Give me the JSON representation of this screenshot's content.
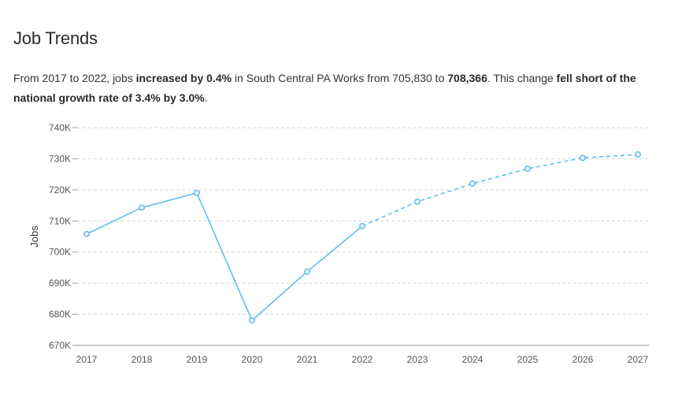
{
  "title": "Job Trends",
  "summary": {
    "p1": "From 2017 to 2022, jobs ",
    "b1": "increased by 0.4%",
    "p2": " in South Central PA Works from 705,830 to ",
    "b2": "708,366",
    "p3": ". This change ",
    "b3": "fell short of the national growth rate of 3.4% by 3.0%",
    "p4": "."
  },
  "chart_data": {
    "type": "line",
    "title": "",
    "xlabel": "",
    "ylabel": "Jobs",
    "categories": [
      "2017",
      "2018",
      "2019",
      "2020",
      "2021",
      "2022",
      "2023",
      "2024",
      "2025",
      "2026",
      "2027"
    ],
    "series": [
      {
        "style": "solid",
        "x": [
          "2017",
          "2018",
          "2019",
          "2020",
          "2021",
          "2022"
        ],
        "values": [
          705830,
          714300,
          719000,
          678000,
          693700,
          708366
        ]
      },
      {
        "style": "dashed",
        "x": [
          "2022",
          "2023",
          "2024",
          "2025",
          "2026",
          "2027"
        ],
        "values": [
          708366,
          716200,
          722000,
          726800,
          730300,
          731400
        ]
      }
    ],
    "ylim": [
      670000,
      740000
    ],
    "yticks": [
      670000,
      680000,
      690000,
      700000,
      710000,
      720000,
      730000,
      740000
    ],
    "ytick_labels": [
      "670K",
      "680K",
      "690K",
      "700K",
      "710K",
      "720K",
      "730K",
      "740K"
    ],
    "grid": true,
    "color": "#5bc0f0"
  }
}
